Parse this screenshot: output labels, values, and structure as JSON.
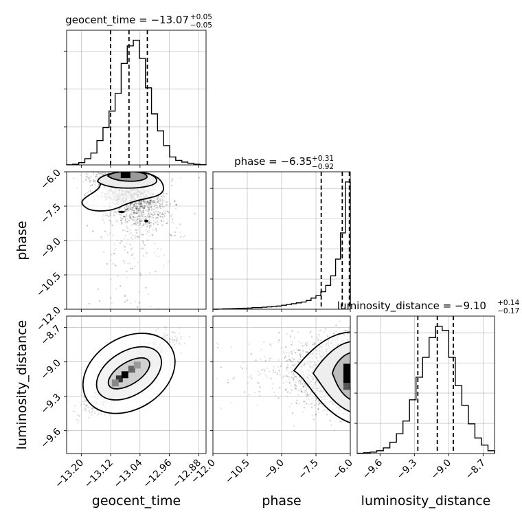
{
  "chart_data": {
    "type": "corner",
    "parameters": [
      "geocent_time",
      "phase",
      "luminosity_distance"
    ],
    "axis_labels": {
      "geocent_time": "geocent_time",
      "phase": "phase",
      "luminosity_distance": "luminosity_distance"
    },
    "ranges": {
      "geocent_time": [
        -13.24,
        -12.86
      ],
      "phase": [
        -12.0,
        -6.0
      ],
      "luminosity_distance": [
        -9.8,
        -8.6
      ]
    },
    "ticks": {
      "geocent_time": [
        -13.2,
        -13.12,
        -13.04,
        -12.96,
        -12.88
      ],
      "phase": [
        -12.0,
        -10.5,
        -9.0,
        -7.5,
        -6.0
      ],
      "luminosity_distance": [
        -9.6,
        -9.3,
        -9.0,
        -8.7
      ]
    },
    "tick_labels": {
      "geocent_time": [
        "−13.20",
        "−13.12",
        "−13.04",
        "−12.96",
        "−12.88"
      ],
      "phase": [
        "−12.0",
        "−10.5",
        "−9.0",
        "−7.5",
        "−6.0"
      ],
      "luminosity_distance": [
        "−9.6",
        "−9.3",
        "−9.0",
        "−8.7"
      ]
    },
    "titles": {
      "geocent_time": {
        "prefix": "geocent_time = −13.07",
        "plus": "+0.05",
        "minus": "−0.05"
      },
      "phase": {
        "prefix": "phase = −6.35",
        "plus": "+0.31",
        "minus": "−0.92"
      },
      "luminosity_distance": {
        "prefix": "luminosity_distance = −9.10",
        "plus": "+0.14",
        "minus": "−0.17"
      }
    },
    "quantiles": {
      "geocent_time": [
        -13.12,
        -13.07,
        -13.02
      ],
      "phase": [
        -7.27,
        -6.35,
        -6.04
      ],
      "luminosity_distance": [
        -9.27,
        -9.1,
        -8.96
      ]
    },
    "histograms": {
      "geocent_time": {
        "edges_range": [
          -13.24,
          -12.86
        ],
        "counts": [
          0.1,
          0.6,
          2,
          5.5,
          10.5,
          21.5,
          33,
          47.5,
          63,
          89.5,
          105,
          110,
          94,
          68,
          45,
          30,
          17,
          7,
          4,
          2.5,
          1.5,
          0.6,
          0.2
        ]
      },
      "phase": {
        "edges_range": [
          -12.0,
          -6.0
        ],
        "counts": [
          0,
          0.2,
          0.5,
          0.6,
          0.8,
          1,
          1.2,
          1.5,
          2,
          2,
          2.5,
          3,
          3.5,
          4,
          5,
          6,
          7,
          8,
          9,
          11,
          14,
          17,
          22,
          30,
          42,
          63,
          96,
          160
        ]
      },
      "luminosity_distance": {
        "edges_range": [
          -9.8,
          -8.6
        ],
        "counts": [
          0.2,
          0.6,
          1,
          2,
          4,
          8,
          14,
          23,
          38,
          54,
          68,
          82,
          90,
          87,
          68,
          48,
          34,
          21,
          11,
          6,
          2
        ]
      }
    },
    "scatter_ticks_hidden_on_diagonal": true,
    "grid": true
  }
}
